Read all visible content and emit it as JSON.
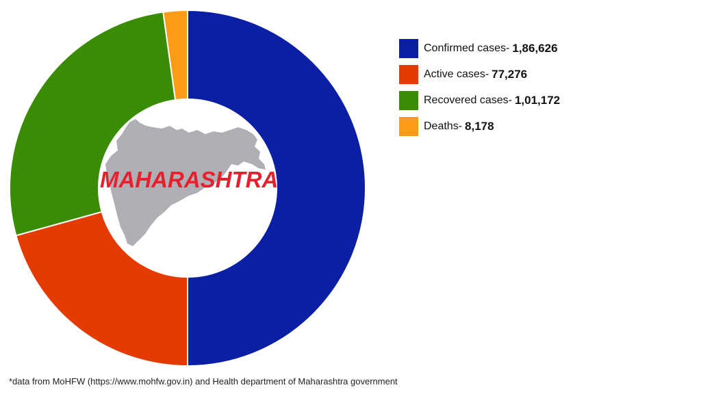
{
  "chart_data": {
    "type": "pie",
    "subtype": "donut",
    "title": "",
    "center_label": "MAHARASHTRA",
    "categories": [
      "Confirmed cases",
      "Active cases",
      "Recovered cases",
      "Deaths"
    ],
    "values": [
      186626,
      77276,
      101172,
      8178
    ],
    "colors": [
      "#0a1fa3",
      "#e33b02",
      "#3a8c05",
      "#fb9b16"
    ],
    "legend_position": "right",
    "start_angle_deg": 0,
    "direction": "clockwise"
  },
  "legend": {
    "items": [
      {
        "label": "Confirmed cases-",
        "value": "1,86,626",
        "color": "#0a1fa3"
      },
      {
        "label": "Active cases-",
        "value": "77,276",
        "color": "#e33b02"
      },
      {
        "label": "Recovered cases-",
        "value": "1,01,172",
        "color": "#3a8c05"
      },
      {
        "label": "Deaths-",
        "value": "8,178",
        "color": "#fb9b16"
      }
    ]
  },
  "center": {
    "label": "MAHARASHTRA",
    "map_color": "#aeb0b5",
    "label_color": "#e8202e"
  },
  "footnote": "*data from MoHFW (https://www.mohfw.gov.in) and Health department of Maharashtra government"
}
